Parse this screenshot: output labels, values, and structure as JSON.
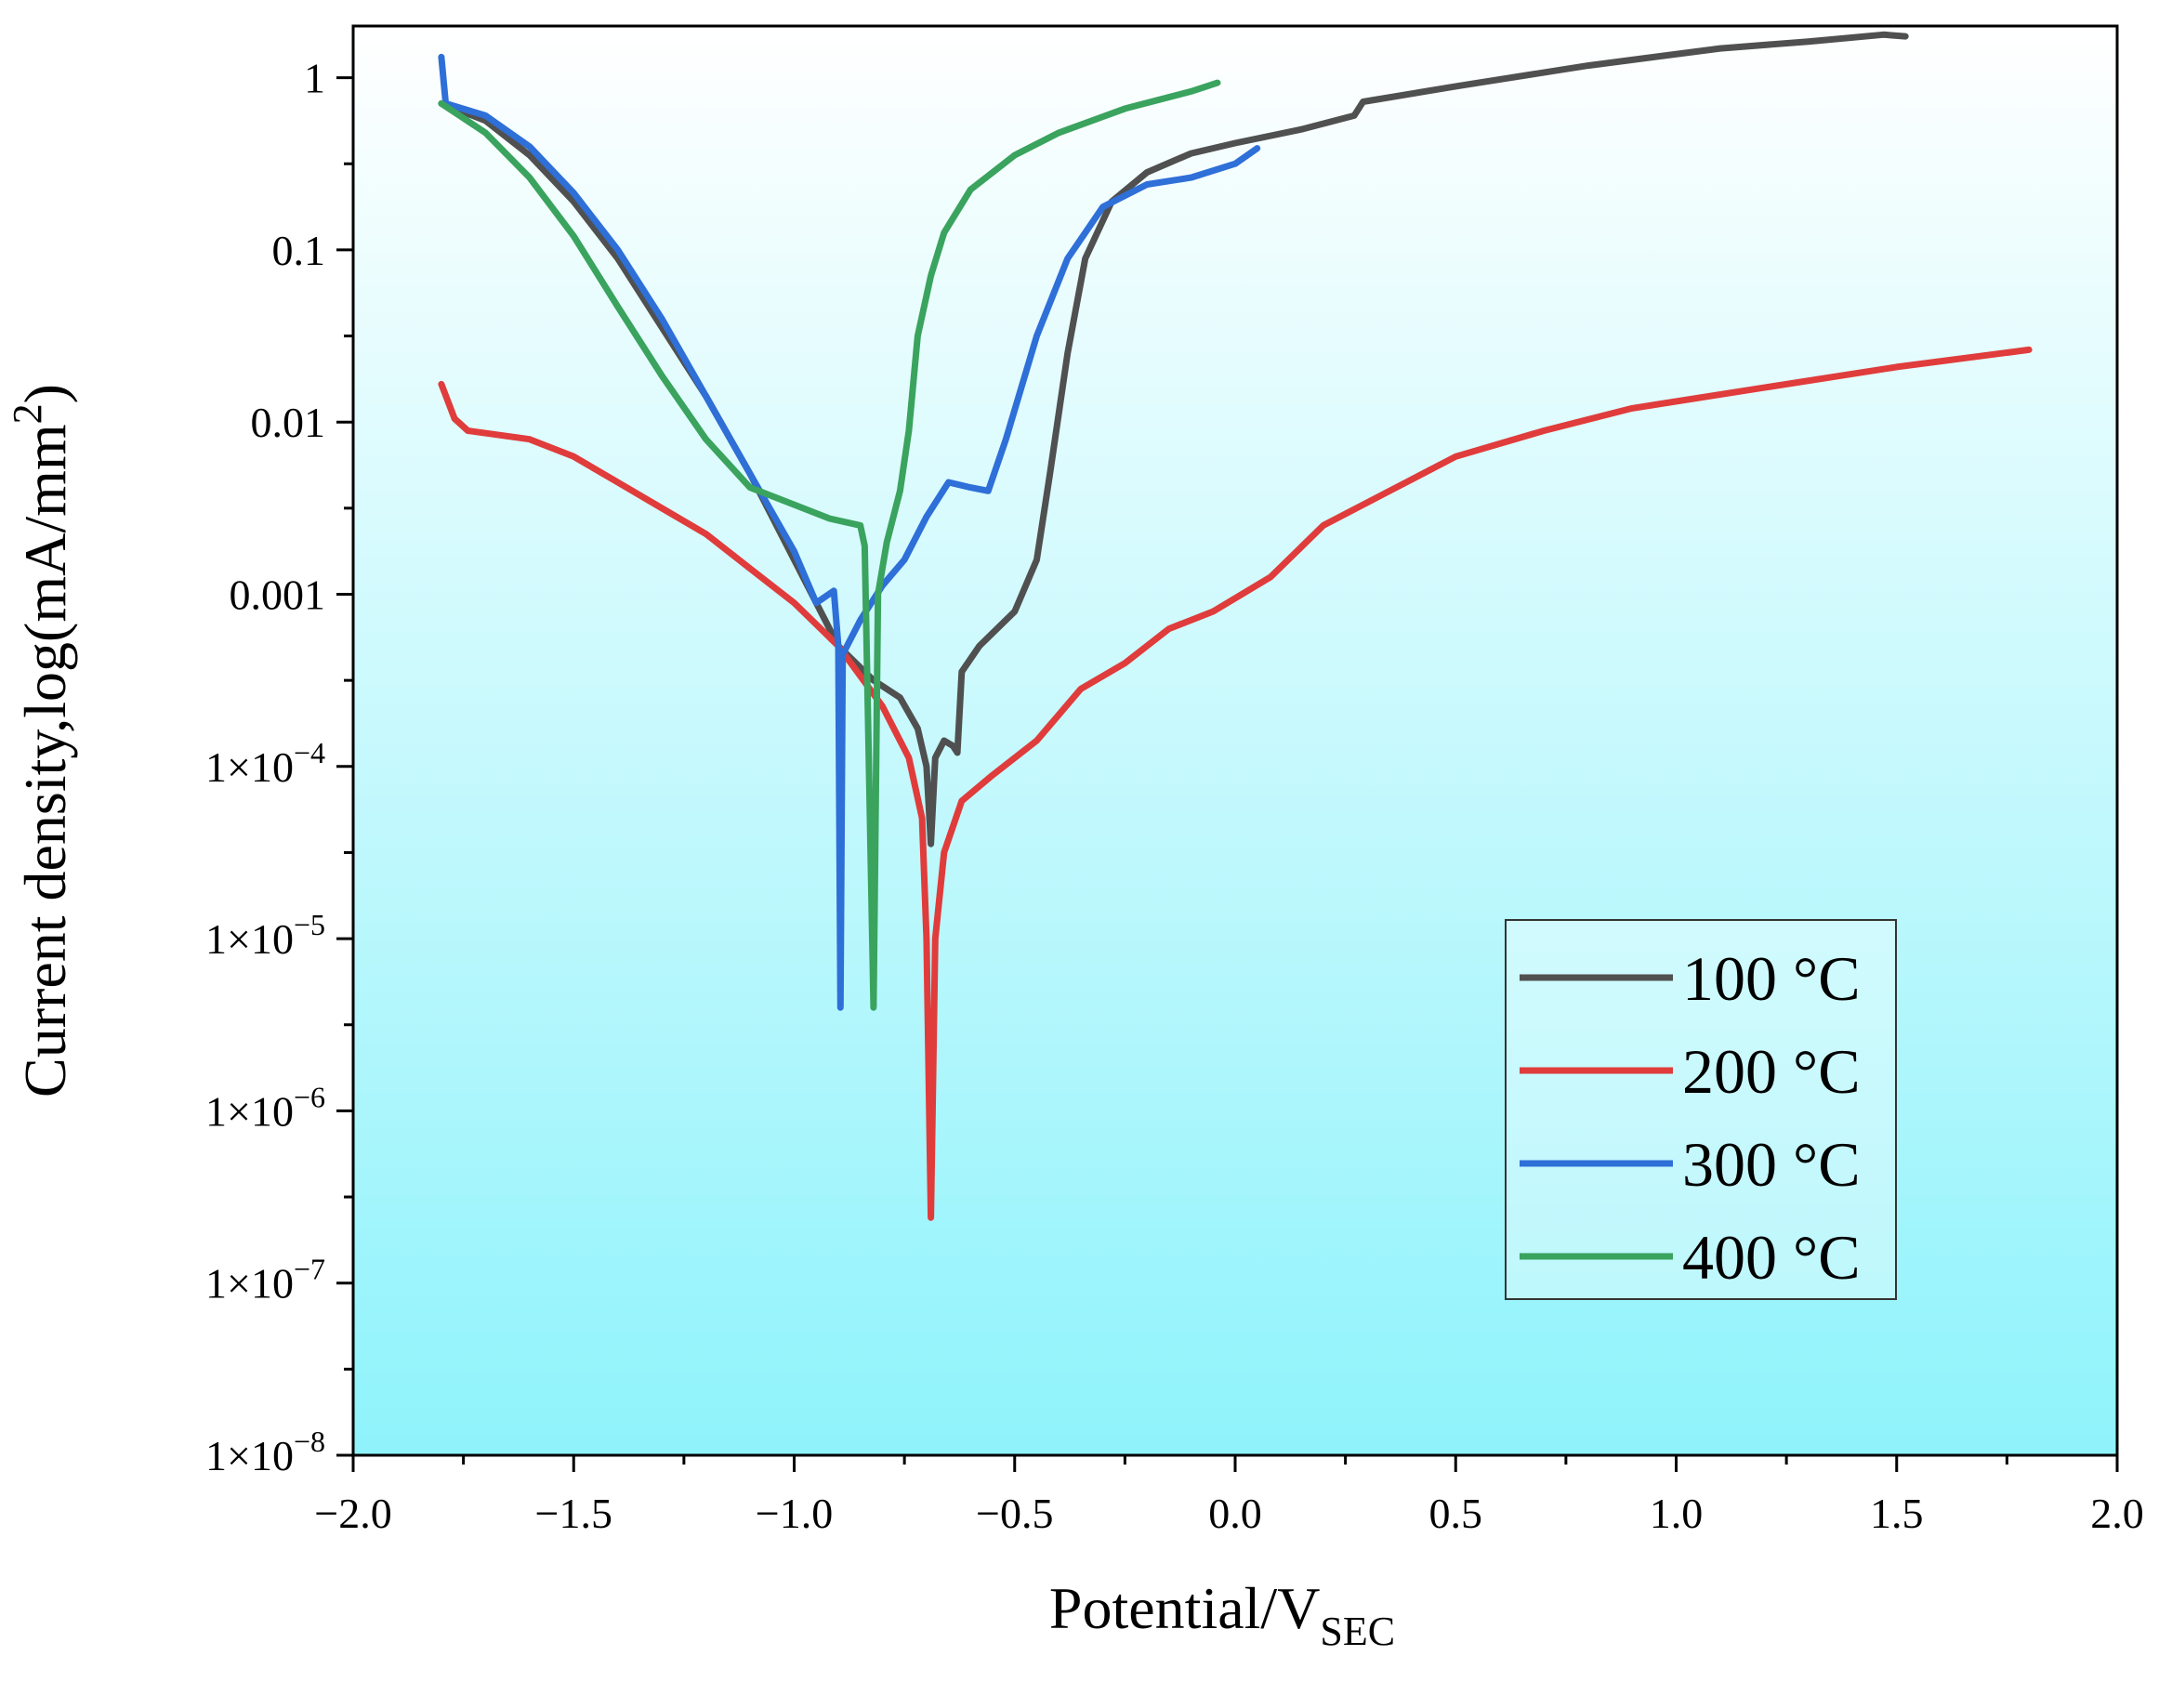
{
  "chart_data": {
    "type": "line",
    "title": "",
    "xlabel": {
      "main": "Potential/V",
      "subscript": "SEC"
    },
    "ylabel": {
      "main": "Current density,log(mA/mm",
      "superscript": "2",
      "tail": ")"
    },
    "xlim": [
      -2.0,
      2.0
    ],
    "ylim_log10": [
      -8,
      0.3
    ],
    "x_ticks": [
      {
        "value": -2.0,
        "label": "−2.0"
      },
      {
        "value": -1.5,
        "label": "−1.5"
      },
      {
        "value": -1.0,
        "label": "−1.0"
      },
      {
        "value": -0.5,
        "label": "−0.5"
      },
      {
        "value": 0.0,
        "label": "0.0"
      },
      {
        "value": 0.5,
        "label": "0.5"
      },
      {
        "value": 1.0,
        "label": "1.0"
      },
      {
        "value": 1.5,
        "label": "1.5"
      },
      {
        "value": 2.0,
        "label": "2.0"
      }
    ],
    "y_ticks": [
      {
        "exp": 0,
        "label": "1"
      },
      {
        "exp": -1,
        "label": "0.1"
      },
      {
        "exp": -2,
        "label": "0.01"
      },
      {
        "exp": -3,
        "label": "0.001"
      },
      {
        "exp": -4,
        "base": "1×10",
        "sup": "−4"
      },
      {
        "exp": -5,
        "base": "1×10",
        "sup": "−5"
      },
      {
        "exp": -6,
        "base": "1×10",
        "sup": "−6"
      },
      {
        "exp": -7,
        "base": "1×10",
        "sup": "−7"
      },
      {
        "exp": -8,
        "base": "1×10",
        "sup": "−8"
      }
    ],
    "legend_position": "lower-right",
    "series": [
      {
        "name": "100 °C",
        "color": "#505050",
        "points": [
          [
            -1.8,
            -0.15
          ],
          [
            -1.7,
            -0.25
          ],
          [
            -1.6,
            -0.45
          ],
          [
            -1.5,
            -0.72
          ],
          [
            -1.4,
            -1.05
          ],
          [
            -1.3,
            -1.45
          ],
          [
            -1.2,
            -1.85
          ],
          [
            -1.1,
            -2.3
          ],
          [
            -1.0,
            -2.8
          ],
          [
            -0.9,
            -3.3
          ],
          [
            -0.82,
            -3.5
          ],
          [
            -0.76,
            -3.6
          ],
          [
            -0.72,
            -3.78
          ],
          [
            -0.7,
            -4.0
          ],
          [
            -0.69,
            -4.45
          ],
          [
            -0.68,
            -3.95
          ],
          [
            -0.66,
            -3.85
          ],
          [
            -0.64,
            -3.88
          ],
          [
            -0.63,
            -3.92
          ],
          [
            -0.62,
            -3.45
          ],
          [
            -0.58,
            -3.3
          ],
          [
            -0.5,
            -3.1
          ],
          [
            -0.45,
            -2.8
          ],
          [
            -0.42,
            -2.3
          ],
          [
            -0.38,
            -1.6
          ],
          [
            -0.34,
            -1.05
          ],
          [
            -0.28,
            -0.72
          ],
          [
            -0.2,
            -0.55
          ],
          [
            -0.1,
            -0.44
          ],
          [
            0.0,
            -0.38
          ],
          [
            0.15,
            -0.3
          ],
          [
            0.27,
            -0.22
          ],
          [
            0.29,
            -0.14
          ],
          [
            0.5,
            -0.05
          ],
          [
            0.8,
            0.07
          ],
          [
            1.1,
            0.17
          ],
          [
            1.3,
            0.21
          ],
          [
            1.47,
            0.25
          ],
          [
            1.52,
            0.24
          ]
        ]
      },
      {
        "name": "200 °C",
        "color": "#E03C3C",
        "points": [
          [
            -1.8,
            -1.78
          ],
          [
            -1.77,
            -1.98
          ],
          [
            -1.74,
            -2.05
          ],
          [
            -1.6,
            -2.1
          ],
          [
            -1.5,
            -2.2
          ],
          [
            -1.4,
            -2.35
          ],
          [
            -1.3,
            -2.5
          ],
          [
            -1.2,
            -2.65
          ],
          [
            -1.1,
            -2.85
          ],
          [
            -1.0,
            -3.05
          ],
          [
            -0.9,
            -3.3
          ],
          [
            -0.8,
            -3.65
          ],
          [
            -0.74,
            -3.95
          ],
          [
            -0.71,
            -4.3
          ],
          [
            -0.7,
            -5.0
          ],
          [
            -0.69,
            -6.62
          ],
          [
            -0.68,
            -5.0
          ],
          [
            -0.66,
            -4.5
          ],
          [
            -0.62,
            -4.2
          ],
          [
            -0.55,
            -4.05
          ],
          [
            -0.45,
            -3.85
          ],
          [
            -0.35,
            -3.55
          ],
          [
            -0.25,
            -3.4
          ],
          [
            -0.15,
            -3.2
          ],
          [
            -0.05,
            -3.1
          ],
          [
            0.08,
            -2.9
          ],
          [
            0.2,
            -2.6
          ],
          [
            0.35,
            -2.4
          ],
          [
            0.5,
            -2.2
          ],
          [
            0.7,
            -2.05
          ],
          [
            0.9,
            -1.92
          ],
          [
            1.2,
            -1.8
          ],
          [
            1.5,
            -1.68
          ],
          [
            1.8,
            -1.58
          ]
        ]
      },
      {
        "name": "300 °C",
        "color": "#2E6FD8",
        "points": [
          [
            -1.8,
            0.12
          ],
          [
            -1.79,
            -0.15
          ],
          [
            -1.7,
            -0.22
          ],
          [
            -1.6,
            -0.4
          ],
          [
            -1.5,
            -0.67
          ],
          [
            -1.4,
            -1.0
          ],
          [
            -1.3,
            -1.4
          ],
          [
            -1.2,
            -1.85
          ],
          [
            -1.1,
            -2.3
          ],
          [
            -1.0,
            -2.75
          ],
          [
            -0.95,
            -3.05
          ],
          [
            -0.91,
            -2.98
          ],
          [
            -0.9,
            -3.3
          ],
          [
            -0.895,
            -5.4
          ],
          [
            -0.89,
            -3.35
          ],
          [
            -0.85,
            -3.15
          ],
          [
            -0.8,
            -2.95
          ],
          [
            -0.75,
            -2.8
          ],
          [
            -0.7,
            -2.55
          ],
          [
            -0.65,
            -2.35
          ],
          [
            -0.6,
            -2.38
          ],
          [
            -0.56,
            -2.4
          ],
          [
            -0.52,
            -2.1
          ],
          [
            -0.45,
            -1.5
          ],
          [
            -0.38,
            -1.05
          ],
          [
            -0.3,
            -0.75
          ],
          [
            -0.2,
            -0.62
          ],
          [
            -0.1,
            -0.58
          ],
          [
            0.0,
            -0.5
          ],
          [
            0.05,
            -0.41
          ]
        ]
      },
      {
        "name": "400 °C",
        "color": "#3AA35E",
        "points": [
          [
            -1.8,
            -0.15
          ],
          [
            -1.7,
            -0.32
          ],
          [
            -1.6,
            -0.58
          ],
          [
            -1.5,
            -0.92
          ],
          [
            -1.4,
            -1.33
          ],
          [
            -1.3,
            -1.73
          ],
          [
            -1.2,
            -2.1
          ],
          [
            -1.1,
            -2.38
          ],
          [
            -1.0,
            -2.48
          ],
          [
            -0.92,
            -2.56
          ],
          [
            -0.85,
            -2.6
          ],
          [
            -0.84,
            -2.72
          ],
          [
            -0.82,
            -5.4
          ],
          [
            -0.81,
            -3.0
          ],
          [
            -0.79,
            -2.7
          ],
          [
            -0.76,
            -2.4
          ],
          [
            -0.74,
            -2.05
          ],
          [
            -0.72,
            -1.5
          ],
          [
            -0.69,
            -1.15
          ],
          [
            -0.66,
            -0.9
          ],
          [
            -0.6,
            -0.65
          ],
          [
            -0.5,
            -0.45
          ],
          [
            -0.4,
            -0.32
          ],
          [
            -0.25,
            -0.18
          ],
          [
            -0.1,
            -0.08
          ],
          [
            -0.04,
            -0.03
          ]
        ]
      }
    ]
  }
}
